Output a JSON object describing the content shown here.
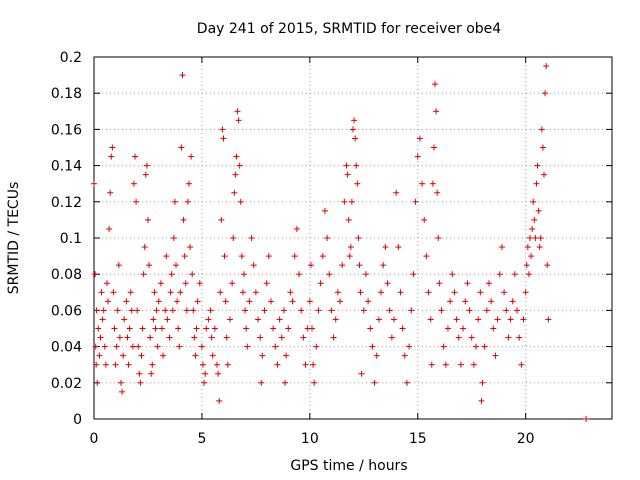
{
  "chart_data": {
    "type": "scatter",
    "title": "Day 241 of 2015, SRMTID for receiver obe4",
    "xlabel": "GPS time / hours",
    "ylabel": "SRMTID / TECUs",
    "xlim": [
      0,
      24
    ],
    "ylim": [
      0,
      0.2
    ],
    "x_ticks": [
      0,
      5,
      10,
      15,
      20
    ],
    "x_tick_labels": [
      "0",
      "5",
      "10",
      "15",
      "20"
    ],
    "y_ticks": [
      0,
      0.02,
      0.04,
      0.06,
      0.08,
      0.1,
      0.12,
      0.14,
      0.16,
      0.18,
      0.2
    ],
    "y_tick_labels": [
      "0",
      "0.02",
      "0.04",
      "0.06",
      "0.08",
      "0.1",
      "0.12",
      "0.14",
      "0.16",
      "0.18",
      "0.2"
    ],
    "grid": true,
    "marker": "plus",
    "marker_color": "#e00000",
    "series": [
      {
        "name": "obe4",
        "points": [
          [
            0.0,
            0.13
          ],
          [
            0.05,
            0.08
          ],
          [
            0.08,
            0.04
          ],
          [
            0.1,
            0.03
          ],
          [
            0.12,
            0.06
          ],
          [
            0.15,
            0.02
          ],
          [
            0.2,
            0.05
          ],
          [
            0.25,
            0.035
          ],
          [
            0.3,
            0.045
          ],
          [
            0.35,
            0.07
          ],
          [
            0.4,
            0.055
          ],
          [
            0.45,
            0.06
          ],
          [
            0.5,
            0.04
          ],
          [
            0.55,
            0.03
          ],
          [
            0.6,
            0.075
          ],
          [
            0.65,
            0.065
          ],
          [
            0.7,
            0.105
          ],
          [
            0.75,
            0.125
          ],
          [
            0.8,
            0.145
          ],
          [
            0.85,
            0.15
          ],
          [
            0.9,
            0.07
          ],
          [
            0.95,
            0.05
          ],
          [
            1.0,
            0.03
          ],
          [
            1.05,
            0.04
          ],
          [
            1.1,
            0.06
          ],
          [
            1.15,
            0.085
          ],
          [
            1.2,
            0.045
          ],
          [
            1.25,
            0.02
          ],
          [
            1.3,
            0.015
          ],
          [
            1.35,
            0.035
          ],
          [
            1.4,
            0.055
          ],
          [
            1.5,
            0.065
          ],
          [
            1.55,
            0.045
          ],
          [
            1.6,
            0.03
          ],
          [
            1.65,
            0.05
          ],
          [
            1.7,
            0.07
          ],
          [
            1.75,
            0.06
          ],
          [
            1.8,
            0.04
          ],
          [
            1.85,
            0.13
          ],
          [
            1.9,
            0.145
          ],
          [
            1.95,
            0.12
          ],
          [
            2.0,
            0.06
          ],
          [
            2.05,
            0.04
          ],
          [
            2.1,
            0.025
          ],
          [
            2.15,
            0.02
          ],
          [
            2.2,
            0.035
          ],
          [
            2.25,
            0.05
          ],
          [
            2.3,
            0.08
          ],
          [
            2.35,
            0.095
          ],
          [
            2.4,
            0.135
          ],
          [
            2.45,
            0.14
          ],
          [
            2.5,
            0.11
          ],
          [
            2.55,
            0.085
          ],
          [
            2.6,
            0.045
          ],
          [
            2.65,
            0.025
          ],
          [
            2.7,
            0.03
          ],
          [
            2.75,
            0.055
          ],
          [
            2.8,
            0.07
          ],
          [
            2.85,
            0.05
          ],
          [
            2.9,
            0.06
          ],
          [
            2.95,
            0.04
          ],
          [
            3.0,
            0.065
          ],
          [
            3.1,
            0.075
          ],
          [
            3.15,
            0.05
          ],
          [
            3.2,
            0.035
          ],
          [
            3.3,
            0.06
          ],
          [
            3.35,
            0.09
          ],
          [
            3.4,
            0.055
          ],
          [
            3.5,
            0.045
          ],
          [
            3.55,
            0.07
          ],
          [
            3.6,
            0.08
          ],
          [
            3.65,
            0.06
          ],
          [
            3.7,
            0.1
          ],
          [
            3.75,
            0.12
          ],
          [
            3.8,
            0.085
          ],
          [
            3.85,
            0.065
          ],
          [
            3.9,
            0.05
          ],
          [
            3.95,
            0.04
          ],
          [
            4.0,
            0.07
          ],
          [
            4.05,
            0.15
          ],
          [
            4.1,
            0.19
          ],
          [
            4.15,
            0.11
          ],
          [
            4.2,
            0.09
          ],
          [
            4.25,
            0.075
          ],
          [
            4.3,
            0.06
          ],
          [
            4.35,
            0.12
          ],
          [
            4.4,
            0.13
          ],
          [
            4.45,
            0.095
          ],
          [
            4.5,
            0.145
          ],
          [
            4.55,
            0.08
          ],
          [
            4.6,
            0.06
          ],
          [
            4.65,
            0.045
          ],
          [
            4.7,
            0.035
          ],
          [
            4.75,
            0.05
          ],
          [
            4.8,
            0.065
          ],
          [
            4.9,
            0.075
          ],
          [
            5.0,
            0.04
          ],
          [
            5.05,
            0.03
          ],
          [
            5.1,
            0.02
          ],
          [
            5.15,
            0.025
          ],
          [
            5.2,
            0.05
          ],
          [
            5.3,
            0.055
          ],
          [
            5.4,
            0.06
          ],
          [
            5.45,
            0.045
          ],
          [
            5.5,
            0.035
          ],
          [
            5.6,
            0.05
          ],
          [
            5.7,
            0.03
          ],
          [
            5.75,
            0.025
          ],
          [
            5.8,
            0.01
          ],
          [
            5.85,
            0.07
          ],
          [
            5.9,
            0.11
          ],
          [
            5.95,
            0.16
          ],
          [
            6.0,
            0.155
          ],
          [
            6.05,
            0.09
          ],
          [
            6.1,
            0.065
          ],
          [
            6.15,
            0.045
          ],
          [
            6.2,
            0.03
          ],
          [
            6.3,
            0.055
          ],
          [
            6.4,
            0.075
          ],
          [
            6.45,
            0.1
          ],
          [
            6.5,
            0.125
          ],
          [
            6.55,
            0.135
          ],
          [
            6.6,
            0.145
          ],
          [
            6.65,
            0.17
          ],
          [
            6.7,
            0.165
          ],
          [
            6.75,
            0.14
          ],
          [
            6.8,
            0.12
          ],
          [
            6.85,
            0.09
          ],
          [
            6.9,
            0.07
          ],
          [
            6.95,
            0.08
          ],
          [
            7.0,
            0.06
          ],
          [
            7.05,
            0.05
          ],
          [
            7.1,
            0.04
          ],
          [
            7.2,
            0.065
          ],
          [
            7.3,
            0.1
          ],
          [
            7.4,
            0.085
          ],
          [
            7.5,
            0.07
          ],
          [
            7.6,
            0.055
          ],
          [
            7.7,
            0.045
          ],
          [
            7.75,
            0.02
          ],
          [
            7.8,
            0.035
          ],
          [
            7.9,
            0.06
          ],
          [
            8.0,
            0.075
          ],
          [
            8.1,
            0.09
          ],
          [
            8.2,
            0.065
          ],
          [
            8.3,
            0.05
          ],
          [
            8.4,
            0.04
          ],
          [
            8.5,
            0.03
          ],
          [
            8.6,
            0.055
          ],
          [
            8.7,
            0.045
          ],
          [
            8.8,
            0.06
          ],
          [
            8.85,
            0.02
          ],
          [
            8.9,
            0.035
          ],
          [
            9.0,
            0.05
          ],
          [
            9.1,
            0.07
          ],
          [
            9.2,
            0.065
          ],
          [
            9.3,
            0.09
          ],
          [
            9.4,
            0.105
          ],
          [
            9.5,
            0.08
          ],
          [
            9.6,
            0.06
          ],
          [
            9.7,
            0.045
          ],
          [
            9.8,
            0.03
          ],
          [
            9.9,
            0.05
          ],
          [
            10.0,
            0.065
          ],
          [
            10.05,
            0.085
          ],
          [
            10.1,
            0.05
          ],
          [
            10.15,
            0.03
          ],
          [
            10.2,
            0.02
          ],
          [
            10.3,
            0.04
          ],
          [
            10.4,
            0.06
          ],
          [
            10.5,
            0.075
          ],
          [
            10.6,
            0.09
          ],
          [
            10.7,
            0.115
          ],
          [
            10.8,
            0.1
          ],
          [
            10.9,
            0.08
          ],
          [
            11.0,
            0.06
          ],
          [
            11.1,
            0.045
          ],
          [
            11.2,
            0.055
          ],
          [
            11.3,
            0.07
          ],
          [
            11.4,
            0.065
          ],
          [
            11.5,
            0.085
          ],
          [
            11.6,
            0.12
          ],
          [
            11.7,
            0.14
          ],
          [
            11.75,
            0.135
          ],
          [
            11.8,
            0.11
          ],
          [
            11.85,
            0.09
          ],
          [
            11.9,
            0.095
          ],
          [
            11.95,
            0.12
          ],
          [
            12.0,
            0.16
          ],
          [
            12.05,
            0.165
          ],
          [
            12.1,
            0.155
          ],
          [
            12.15,
            0.14
          ],
          [
            12.2,
            0.13
          ],
          [
            12.25,
            0.1
          ],
          [
            12.3,
            0.085
          ],
          [
            12.35,
            0.07
          ],
          [
            12.4,
            0.025
          ],
          [
            12.5,
            0.06
          ],
          [
            12.6,
            0.08
          ],
          [
            12.7,
            0.065
          ],
          [
            12.8,
            0.05
          ],
          [
            12.9,
            0.04
          ],
          [
            13.0,
            0.02
          ],
          [
            13.1,
            0.035
          ],
          [
            13.2,
            0.055
          ],
          [
            13.3,
            0.07
          ],
          [
            13.4,
            0.085
          ],
          [
            13.5,
            0.095
          ],
          [
            13.6,
            0.075
          ],
          [
            13.7,
            0.06
          ],
          [
            13.8,
            0.045
          ],
          [
            13.9,
            0.055
          ],
          [
            14.0,
            0.125
          ],
          [
            14.1,
            0.095
          ],
          [
            14.2,
            0.07
          ],
          [
            14.3,
            0.05
          ],
          [
            14.4,
            0.035
          ],
          [
            14.5,
            0.02
          ],
          [
            14.6,
            0.04
          ],
          [
            14.7,
            0.06
          ],
          [
            14.8,
            0.08
          ],
          [
            14.9,
            0.12
          ],
          [
            15.0,
            0.145
          ],
          [
            15.1,
            0.155
          ],
          [
            15.2,
            0.13
          ],
          [
            15.3,
            0.11
          ],
          [
            15.4,
            0.09
          ],
          [
            15.5,
            0.07
          ],
          [
            15.6,
            0.055
          ],
          [
            15.65,
            0.03
          ],
          [
            15.7,
            0.13
          ],
          [
            15.75,
            0.15
          ],
          [
            15.8,
            0.185
          ],
          [
            15.85,
            0.17
          ],
          [
            15.9,
            0.125
          ],
          [
            15.95,
            0.1
          ],
          [
            16.0,
            0.075
          ],
          [
            16.1,
            0.06
          ],
          [
            16.2,
            0.04
          ],
          [
            16.3,
            0.03
          ],
          [
            16.4,
            0.05
          ],
          [
            16.5,
            0.065
          ],
          [
            16.6,
            0.08
          ],
          [
            16.7,
            0.07
          ],
          [
            16.8,
            0.055
          ],
          [
            16.9,
            0.045
          ],
          [
            17.0,
            0.03
          ],
          [
            17.1,
            0.05
          ],
          [
            17.2,
            0.065
          ],
          [
            17.3,
            0.075
          ],
          [
            17.4,
            0.06
          ],
          [
            17.5,
            0.045
          ],
          [
            17.6,
            0.03
          ],
          [
            17.7,
            0.04
          ],
          [
            17.8,
            0.055
          ],
          [
            17.9,
            0.07
          ],
          [
            17.95,
            0.01
          ],
          [
            18.0,
            0.02
          ],
          [
            18.1,
            0.04
          ],
          [
            18.2,
            0.06
          ],
          [
            18.3,
            0.075
          ],
          [
            18.4,
            0.065
          ],
          [
            18.5,
            0.05
          ],
          [
            18.6,
            0.035
          ],
          [
            18.7,
            0.055
          ],
          [
            18.8,
            0.08
          ],
          [
            18.9,
            0.095
          ],
          [
            19.0,
            0.07
          ],
          [
            19.1,
            0.06
          ],
          [
            19.2,
            0.045
          ],
          [
            19.3,
            0.055
          ],
          [
            19.4,
            0.065
          ],
          [
            19.5,
            0.08
          ],
          [
            19.6,
            0.06
          ],
          [
            19.7,
            0.045
          ],
          [
            19.8,
            0.03
          ],
          [
            19.9,
            0.055
          ],
          [
            20.0,
            0.07
          ],
          [
            20.05,
            0.085
          ],
          [
            20.1,
            0.095
          ],
          [
            20.15,
            0.08
          ],
          [
            20.2,
            0.1
          ],
          [
            20.25,
            0.09
          ],
          [
            20.3,
            0.105
          ],
          [
            20.35,
            0.12
          ],
          [
            20.4,
            0.11
          ],
          [
            20.45,
            0.1
          ],
          [
            20.5,
            0.13
          ],
          [
            20.55,
            0.14
          ],
          [
            20.6,
            0.115
          ],
          [
            20.65,
            0.095
          ],
          [
            20.7,
            0.1
          ],
          [
            20.75,
            0.16
          ],
          [
            20.8,
            0.15
          ],
          [
            20.85,
            0.135
          ],
          [
            20.9,
            0.18
          ],
          [
            20.95,
            0.195
          ],
          [
            21.0,
            0.085
          ],
          [
            21.05,
            0.055
          ],
          [
            22.8,
            0.0
          ]
        ]
      }
    ]
  }
}
